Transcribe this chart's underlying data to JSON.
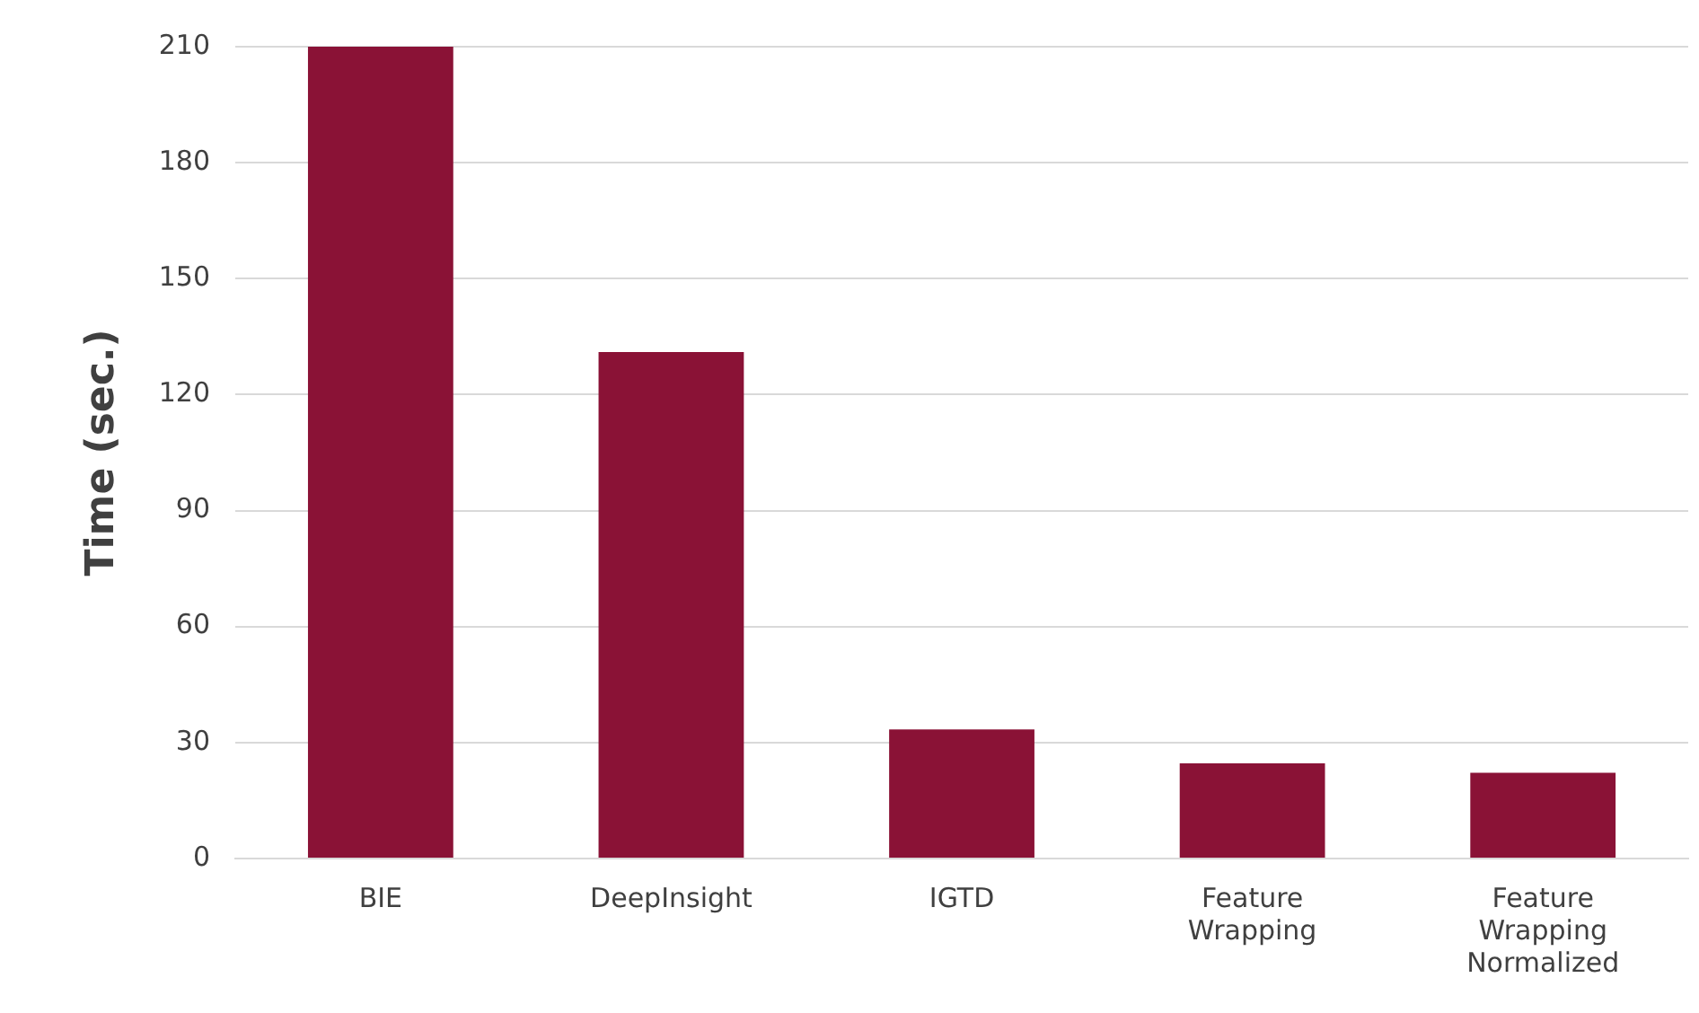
{
  "chart_data": {
    "type": "bar",
    "ylabel": "Time (sec.)",
    "categories": [
      "BIE",
      "DeepInsight",
      "IGTD",
      "Feature Wrapping",
      "Feature Wrapping Normalized"
    ],
    "values": [
      210,
      131,
      33.4,
      24.6,
      22.2
    ],
    "color": "#8a1236",
    "ylim": [
      0,
      210
    ],
    "yticks": [
      0,
      30,
      60,
      90,
      120,
      150,
      180,
      210
    ],
    "grid": "y"
  }
}
